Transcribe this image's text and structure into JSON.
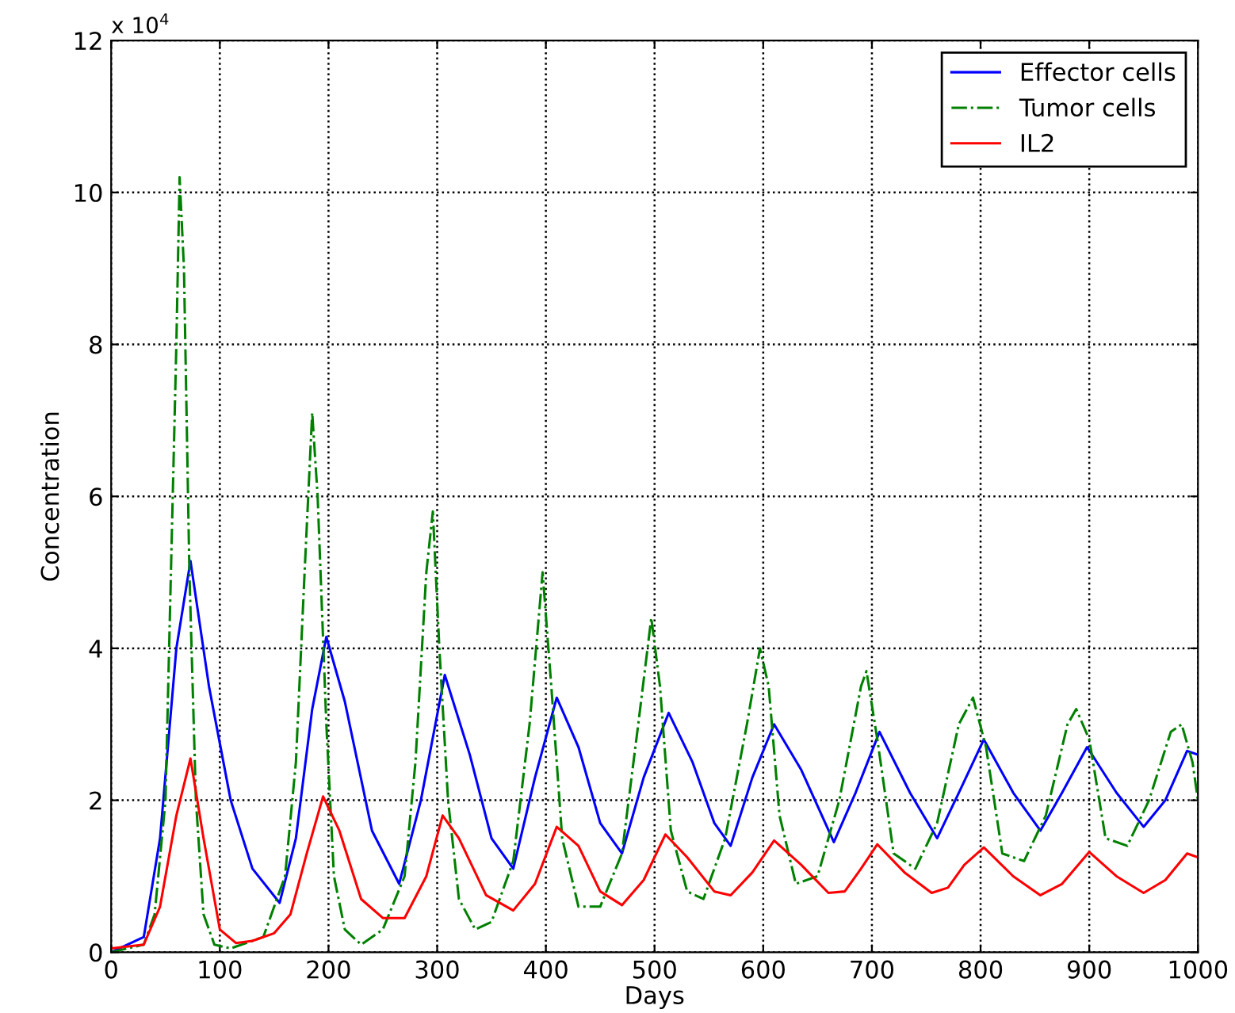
{
  "chart_data": {
    "type": "line",
    "xlabel": "Days",
    "ylabel": "Concentration",
    "annotations": [
      "x 10$^{4}$"
    ],
    "xlim": [
      0,
      1000
    ],
    "xticks": [
      0,
      100,
      200,
      300,
      400,
      500,
      600,
      700,
      800,
      900,
      1000
    ],
    "ylim": [
      0,
      12
    ],
    "yticks": [
      0,
      2,
      4,
      6,
      8,
      10,
      12
    ],
    "grid": true,
    "legend": "top right",
    "marker": "none",
    "series": [
      {
        "name": "Effector cells",
        "color": "#0000ff",
        "line_style": "solid",
        "x": [
          0,
          30,
          45,
          60,
          73,
          90,
          110,
          130,
          155,
          170,
          185,
          198,
          215,
          240,
          265,
          285,
          307,
          330,
          350,
          370,
          390,
          410,
          430,
          450,
          470,
          490,
          513,
          535,
          555,
          570,
          590,
          610,
          635,
          665,
          685,
          707,
          735,
          760,
          780,
          803,
          830,
          855,
          875,
          898,
          925,
          950,
          970,
          990,
          1000
        ],
        "values": [
          0,
          0.2,
          1.5,
          4,
          5.15,
          3.5,
          2,
          1.1,
          0.65,
          1.5,
          3.2,
          4.15,
          3.3,
          1.6,
          0.9,
          2,
          3.65,
          2.6,
          1.5,
          1.1,
          2.3,
          3.35,
          2.7,
          1.7,
          1.3,
          2.3,
          3.15,
          2.5,
          1.7,
          1.4,
          2.3,
          3.0,
          2.4,
          1.45,
          2.1,
          2.9,
          2.1,
          1.5,
          2.1,
          2.8,
          2.1,
          1.6,
          2.1,
          2.7,
          2.1,
          1.65,
          2.0,
          2.65,
          2.6
        ]
      },
      {
        "name": "Tumor cells",
        "color": "#008000",
        "line_style": "dashdot",
        "x": [
          0,
          30,
          40,
          50,
          55,
          60,
          63,
          67,
          72,
          78,
          85,
          95,
          110,
          140,
          160,
          170,
          178,
          185,
          190,
          198,
          205,
          215,
          230,
          250,
          270,
          280,
          290,
          296,
          302,
          310,
          320,
          335,
          350,
          370,
          385,
          397,
          405,
          415,
          430,
          450,
          470,
          485,
          497,
          505,
          515,
          530,
          545,
          565,
          585,
          597,
          605,
          615,
          630,
          650,
          670,
          690,
          695,
          705,
          720,
          740,
          760,
          780,
          793,
          805,
          820,
          840,
          860,
          880,
          888,
          900,
          915,
          935,
          955,
          975,
          985,
          995,
          1000
        ],
        "values": [
          0,
          0.1,
          0.5,
          2,
          5,
          8,
          10.2,
          9,
          5,
          2,
          0.5,
          0.1,
          0.05,
          0.2,
          1,
          2.5,
          5,
          7.1,
          6,
          3,
          1,
          0.3,
          0.1,
          0.3,
          1,
          2.5,
          5,
          5.8,
          4,
          2,
          0.7,
          0.3,
          0.4,
          1.2,
          3,
          5,
          3.5,
          1.5,
          0.6,
          0.6,
          1.3,
          3,
          4.4,
          3.5,
          1.6,
          0.8,
          0.7,
          1.5,
          3,
          4,
          3.5,
          1.8,
          0.9,
          1.0,
          2.0,
          3.5,
          3.7,
          2.8,
          1.3,
          1.1,
          1.7,
          3,
          3.35,
          2.7,
          1.3,
          1.2,
          1.8,
          3.0,
          3.2,
          2.8,
          1.5,
          1.4,
          2.0,
          2.9,
          3.0,
          2.5,
          2.0
        ]
      },
      {
        "name": "IL2",
        "color": "#ff0000",
        "line_style": "solid",
        "x": [
          0,
          30,
          45,
          60,
          73,
          85,
          100,
          115,
          130,
          150,
          165,
          180,
          195,
          210,
          230,
          250,
          270,
          290,
          305,
          320,
          345,
          370,
          390,
          410,
          430,
          450,
          470,
          490,
          510,
          530,
          555,
          570,
          590,
          610,
          635,
          660,
          675,
          690,
          705,
          730,
          755,
          770,
          785,
          803,
          830,
          855,
          875,
          900,
          925,
          950,
          970,
          990,
          1000
        ],
        "values": [
          0.05,
          0.1,
          0.6,
          1.8,
          2.55,
          1.5,
          0.3,
          0.12,
          0.15,
          0.25,
          0.5,
          1.3,
          2.05,
          1.6,
          0.7,
          0.45,
          0.45,
          1.0,
          1.8,
          1.5,
          0.75,
          0.55,
          0.9,
          1.65,
          1.4,
          0.8,
          0.62,
          0.95,
          1.55,
          1.25,
          0.8,
          0.75,
          1.05,
          1.47,
          1.15,
          0.78,
          0.8,
          1.1,
          1.42,
          1.05,
          0.78,
          0.85,
          1.15,
          1.38,
          1.0,
          0.75,
          0.9,
          1.32,
          1.0,
          0.78,
          0.95,
          1.3,
          1.25
        ]
      }
    ]
  }
}
